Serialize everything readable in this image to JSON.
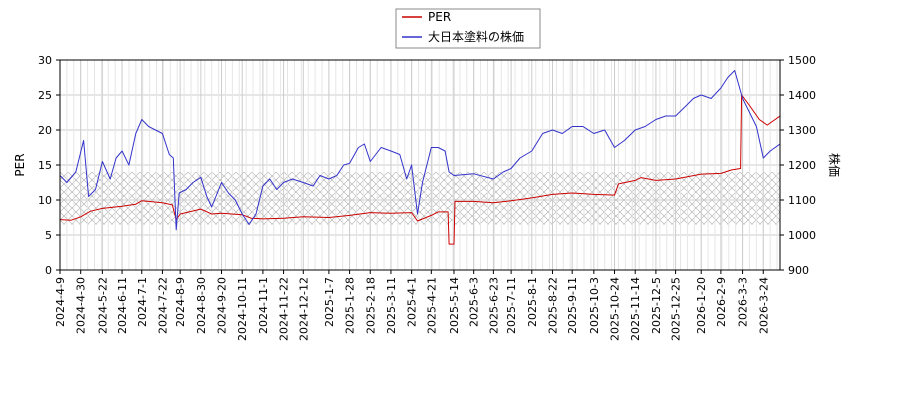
{
  "chart_data": {
    "type": "line",
    "xlabel": "",
    "ylabel_left": "PER",
    "ylabel_right": "株価",
    "ylim_left": [
      0,
      30
    ],
    "ylim_right": [
      900,
      1500
    ],
    "yticks_left": [
      0,
      5,
      10,
      15,
      20,
      25,
      30
    ],
    "yticks_right": [
      900,
      1000,
      1100,
      1200,
      1300,
      1400,
      1500
    ],
    "xlim": [
      "2024-04-09",
      "2026-04-10"
    ],
    "xticks": [
      "2024-4-9",
      "2024-4-30",
      "2024-5-22",
      "2024-6-11",
      "2024-7-1",
      "2024-7-22",
      "2024-8-9",
      "2024-8-30",
      "2024-9-20",
      "2024-10-11",
      "2024-11-1",
      "2024-11-22",
      "2024-12-12",
      "2025-1-7",
      "2025-1-28",
      "2025-2-18",
      "2025-3-11",
      "2025-4-1",
      "2025-4-21",
      "2025-5-14",
      "2025-6-3",
      "2025-6-23",
      "2025-7-11",
      "2025-8-1",
      "2025-8-22",
      "2025-9-11",
      "2025-10-3",
      "2025-10-24",
      "2025-11-14",
      "2025-12-5",
      "2025-12-25",
      "2026-1-20",
      "2026-2-9",
      "2026-3-3",
      "2026-3-24"
    ],
    "grid": true,
    "legend_position": "top-center",
    "band_left": [
      6.5,
      14
    ],
    "series": [
      {
        "name": "PER",
        "axis": "left",
        "color": "#cc0000",
        "points": [
          [
            "2024-04-09",
            7.2
          ],
          [
            "2024-04-20",
            7.1
          ],
          [
            "2024-04-30",
            7.6
          ],
          [
            "2024-05-10",
            8.4
          ],
          [
            "2024-05-22",
            8.8
          ],
          [
            "2024-06-11",
            9.1
          ],
          [
            "2024-06-25",
            9.4
          ],
          [
            "2024-07-01",
            9.9
          ],
          [
            "2024-07-22",
            9.6
          ],
          [
            "2024-08-01",
            9.3
          ],
          [
            "2024-08-05",
            7.2
          ],
          [
            "2024-08-09",
            8.0
          ],
          [
            "2024-08-30",
            8.7
          ],
          [
            "2024-09-10",
            8.0
          ],
          [
            "2024-09-20",
            8.1
          ],
          [
            "2024-10-11",
            7.9
          ],
          [
            "2024-10-20",
            7.4
          ],
          [
            "2024-11-01",
            7.3
          ],
          [
            "2024-11-22",
            7.4
          ],
          [
            "2024-12-12",
            7.6
          ],
          [
            "2025-01-07",
            7.5
          ],
          [
            "2025-01-28",
            7.8
          ],
          [
            "2025-02-18",
            8.2
          ],
          [
            "2025-03-11",
            8.1
          ],
          [
            "2025-04-01",
            8.2
          ],
          [
            "2025-04-07",
            7.0
          ],
          [
            "2025-04-21",
            7.8
          ],
          [
            "2025-04-28",
            8.3
          ],
          [
            "2025-05-08",
            8.3
          ],
          [
            "2025-05-09",
            3.7
          ],
          [
            "2025-05-14",
            3.7
          ],
          [
            "2025-05-15",
            9.8
          ],
          [
            "2025-06-03",
            9.8
          ],
          [
            "2025-06-23",
            9.6
          ],
          [
            "2025-07-11",
            9.9
          ],
          [
            "2025-08-01",
            10.3
          ],
          [
            "2025-08-22",
            10.8
          ],
          [
            "2025-09-11",
            11.0
          ],
          [
            "2025-10-03",
            10.8
          ],
          [
            "2025-10-24",
            10.7
          ],
          [
            "2025-10-28",
            12.3
          ],
          [
            "2025-11-14",
            12.8
          ],
          [
            "2025-11-20",
            13.2
          ],
          [
            "2025-12-05",
            12.8
          ],
          [
            "2025-12-25",
            13.0
          ],
          [
            "2026-01-20",
            13.7
          ],
          [
            "2026-02-09",
            13.8
          ],
          [
            "2026-02-20",
            14.3
          ],
          [
            "2026-03-01",
            14.5
          ],
          [
            "2026-03-02",
            25.0
          ],
          [
            "2026-03-10",
            23.5
          ],
          [
            "2026-03-20",
            21.5
          ],
          [
            "2026-03-28",
            20.7
          ],
          [
            "2026-04-10",
            22.0
          ]
        ]
      },
      {
        "name": "大日本塗料の株価",
        "axis": "right",
        "color": "#3333cc",
        "points": [
          [
            "2024-04-09",
            1170
          ],
          [
            "2024-04-16",
            1150
          ],
          [
            "2024-04-25",
            1180
          ],
          [
            "2024-05-03",
            1270
          ],
          [
            "2024-05-08",
            1110
          ],
          [
            "2024-05-15",
            1130
          ],
          [
            "2024-05-22",
            1210
          ],
          [
            "2024-05-30",
            1160
          ],
          [
            "2024-06-05",
            1220
          ],
          [
            "2024-06-11",
            1240
          ],
          [
            "2024-06-18",
            1200
          ],
          [
            "2024-06-25",
            1290
          ],
          [
            "2024-07-01",
            1330
          ],
          [
            "2024-07-08",
            1310
          ],
          [
            "2024-07-15",
            1300
          ],
          [
            "2024-07-22",
            1290
          ],
          [
            "2024-07-29",
            1230
          ],
          [
            "2024-08-02",
            1220
          ],
          [
            "2024-08-05",
            1015
          ],
          [
            "2024-08-08",
            1120
          ],
          [
            "2024-08-15",
            1130
          ],
          [
            "2024-08-22",
            1150
          ],
          [
            "2024-08-30",
            1165
          ],
          [
            "2024-09-05",
            1110
          ],
          [
            "2024-09-10",
            1080
          ],
          [
            "2024-09-20",
            1150
          ],
          [
            "2024-09-27",
            1120
          ],
          [
            "2024-10-04",
            1100
          ],
          [
            "2024-10-11",
            1060
          ],
          [
            "2024-10-18",
            1030
          ],
          [
            "2024-10-25",
            1060
          ],
          [
            "2024-11-01",
            1140
          ],
          [
            "2024-11-08",
            1160
          ],
          [
            "2024-11-15",
            1130
          ],
          [
            "2024-11-22",
            1150
          ],
          [
            "2024-12-01",
            1160
          ],
          [
            "2024-12-12",
            1150
          ],
          [
            "2024-12-22",
            1140
          ],
          [
            "2024-12-29",
            1170
          ],
          [
            "2025-01-07",
            1160
          ],
          [
            "2025-01-15",
            1170
          ],
          [
            "2025-01-22",
            1200
          ],
          [
            "2025-01-28",
            1205
          ],
          [
            "2025-02-06",
            1250
          ],
          [
            "2025-02-12",
            1260
          ],
          [
            "2025-02-18",
            1210
          ],
          [
            "2025-03-01",
            1250
          ],
          [
            "2025-03-11",
            1240
          ],
          [
            "2025-03-20",
            1230
          ],
          [
            "2025-03-27",
            1160
          ],
          [
            "2025-04-01",
            1200
          ],
          [
            "2025-04-07",
            1060
          ],
          [
            "2025-04-12",
            1150
          ],
          [
            "2025-04-21",
            1250
          ],
          [
            "2025-04-28",
            1250
          ],
          [
            "2025-05-05",
            1240
          ],
          [
            "2025-05-09",
            1180
          ],
          [
            "2025-05-14",
            1170
          ],
          [
            "2025-06-03",
            1175
          ],
          [
            "2025-06-23",
            1160
          ],
          [
            "2025-07-03",
            1180
          ],
          [
            "2025-07-11",
            1190
          ],
          [
            "2025-07-20",
            1220
          ],
          [
            "2025-08-01",
            1240
          ],
          [
            "2025-08-12",
            1290
          ],
          [
            "2025-08-22",
            1300
          ],
          [
            "2025-09-01",
            1290
          ],
          [
            "2025-09-11",
            1310
          ],
          [
            "2025-09-22",
            1310
          ],
          [
            "2025-10-03",
            1290
          ],
          [
            "2025-10-14",
            1300
          ],
          [
            "2025-10-24",
            1250
          ],
          [
            "2025-11-03",
            1270
          ],
          [
            "2025-11-14",
            1300
          ],
          [
            "2025-11-24",
            1310
          ],
          [
            "2025-12-05",
            1330
          ],
          [
            "2025-12-15",
            1340
          ],
          [
            "2025-12-25",
            1340
          ],
          [
            "2026-01-05",
            1370
          ],
          [
            "2026-01-12",
            1390
          ],
          [
            "2026-01-20",
            1400
          ],
          [
            "2026-01-30",
            1390
          ],
          [
            "2026-02-09",
            1420
          ],
          [
            "2026-02-16",
            1450
          ],
          [
            "2026-02-23",
            1470
          ],
          [
            "2026-03-03",
            1390
          ],
          [
            "2026-03-10",
            1350
          ],
          [
            "2026-03-17",
            1310
          ],
          [
            "2026-03-24",
            1220
          ],
          [
            "2026-03-31",
            1240
          ],
          [
            "2026-04-10",
            1260
          ]
        ]
      }
    ]
  }
}
